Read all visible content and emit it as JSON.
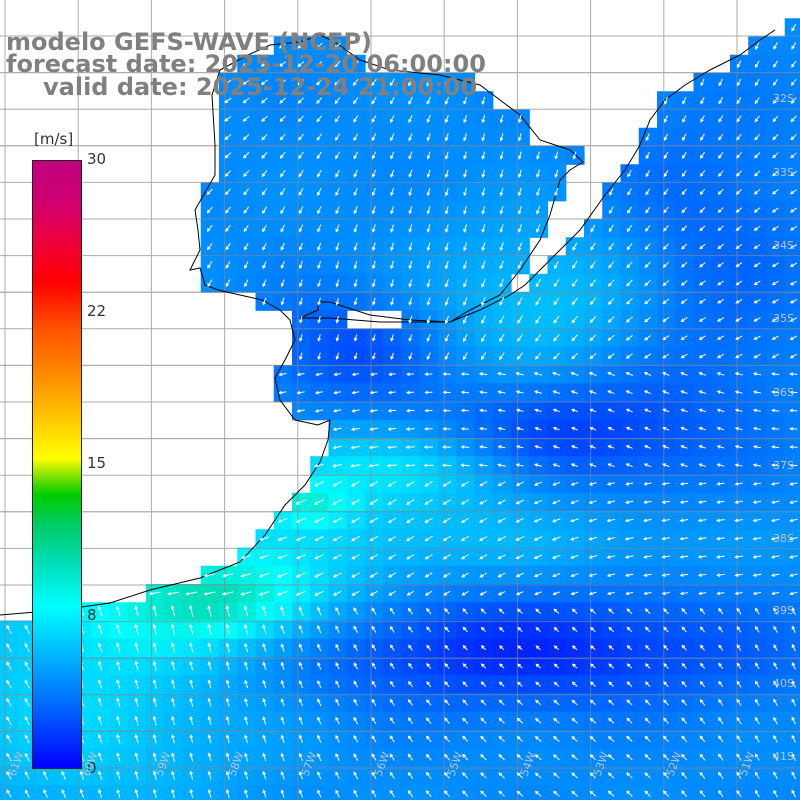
{
  "title": {
    "line1": "modelo GEFS-WAVE (NCEP)",
    "line2": "forecast date: 2025-12-20 06:00:00",
    "line3": "valid date: 2025-12-24 21:00:00"
  },
  "colorbar": {
    "unit": "[m/s]",
    "ticks": [
      "30",
      "22",
      "15",
      "8",
      "0"
    ],
    "range": [
      0,
      30
    ]
  },
  "lat_labels": [
    "32S",
    "33S",
    "34S",
    "35S",
    "36S",
    "37S",
    "38S",
    "39S",
    "40S",
    "41S"
  ],
  "lon_labels": [
    "61W",
    "60W",
    "59W",
    "58W",
    "57W",
    "56W",
    "55W",
    "54W",
    "53W",
    "52W",
    "51W"
  ],
  "colors": {
    "land": "#ffffff",
    "grid": "#888888",
    "coast": "#000000",
    "arrows": "#ffffff",
    "title": "#808080"
  }
}
